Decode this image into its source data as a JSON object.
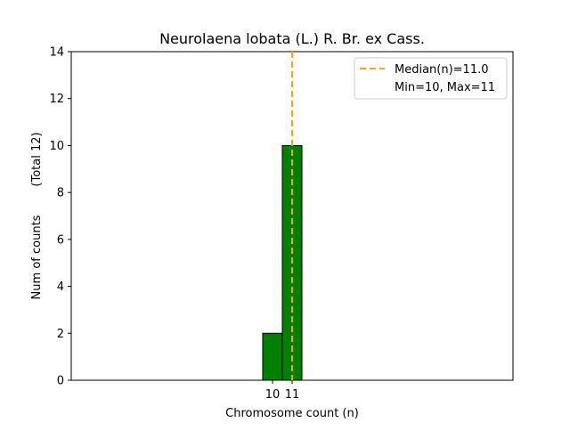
{
  "chart_data": {
    "type": "bar",
    "title": "Neurolaena lobata (L.) R. Br. ex Cass.",
    "xlabel": "Chromosome count (n)",
    "ylabel": "Num of counts",
    "ylabel2": "(Total 12)",
    "categories": [
      10,
      11
    ],
    "values": [
      2,
      10
    ],
    "xticks": [
      "10",
      "11"
    ],
    "yticks": [
      0,
      2,
      4,
      6,
      8,
      10,
      12,
      14
    ],
    "ylim": [
      0,
      14
    ],
    "xlim": [
      -0.27,
      22.27
    ],
    "bar_color": "#008000",
    "bar_edge": "#000000",
    "median": 11.0,
    "median_color": "#FFA500",
    "grid": false,
    "legend": {
      "placement": "top-right",
      "entries": [
        "Median(n)=11.0",
        "Min=10, Max=11"
      ]
    }
  }
}
